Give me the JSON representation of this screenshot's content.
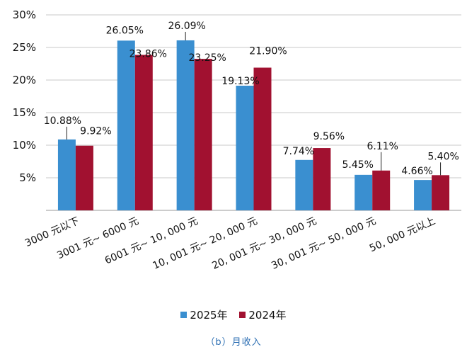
{
  "chart_data": {
    "type": "bar",
    "categories": [
      "3000 元以下",
      "3001 元~ 6000 元",
      "6001 元~ 10, 000 元",
      "10, 001 元~ 20, 000 元",
      "20, 001 元~ 30, 000 元",
      "30, 001 元~ 50, 000 元",
      "50, 000 元以上"
    ],
    "series": [
      {
        "name": "2025年",
        "color": "#3a8fd0",
        "values": [
          10.88,
          26.05,
          26.09,
          19.13,
          7.74,
          5.45,
          4.66
        ],
        "labels": [
          "10.88%",
          "26.05%",
          "26.09%",
          "19.13%",
          "7.74%",
          "5.45%",
          "4.66%"
        ]
      },
      {
        "name": "2024年",
        "color": "#a11130",
        "values": [
          9.92,
          23.86,
          23.25,
          21.9,
          9.56,
          6.11,
          5.4
        ],
        "labels": [
          "9.92%",
          "23.86%",
          "23.25%",
          "21.90%",
          "9.56%",
          "6.11%",
          "5.40%"
        ]
      }
    ],
    "ylim": [
      0,
      30
    ],
    "yticks": [
      {
        "value": 5,
        "label": "5%"
      },
      {
        "value": 10,
        "label": "10%"
      },
      {
        "value": 15,
        "label": "15%"
      },
      {
        "value": 20,
        "label": "20%"
      },
      {
        "value": 25,
        "label": "25%"
      },
      {
        "value": 30,
        "label": "30%"
      }
    ],
    "grid": true,
    "legend": "bottom"
  },
  "caption": "（b）月收入"
}
